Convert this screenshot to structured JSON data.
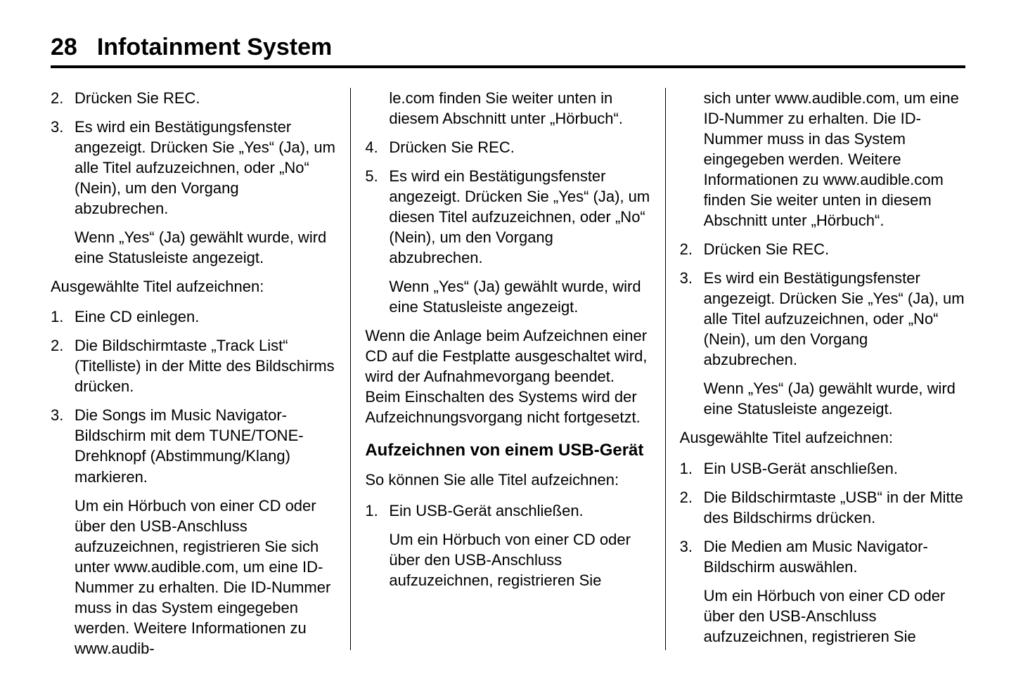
{
  "header": {
    "page_number": "28",
    "title": "Infotainment System"
  },
  "col1": {
    "items_a": [
      {
        "n": "2.",
        "paras": [
          "Drücken Sie REC."
        ]
      },
      {
        "n": "3.",
        "paras": [
          "Es wird ein Bestätigungsfenster angezeigt. Drücken Sie „Yes“ (Ja), um alle Titel aufzuzeichnen, oder „No“ (Nein), um den Vorgang abzubrechen.",
          "Wenn „Yes“ (Ja) gewählt wurde, wird eine Statusleiste angezeigt."
        ]
      }
    ],
    "para_a": "Ausgewählte Titel aufzeichnen:",
    "items_b": [
      {
        "n": "1.",
        "paras": [
          "Eine CD einlegen."
        ]
      },
      {
        "n": "2.",
        "paras": [
          "Die Bildschirmtaste „Track List“ (Titelliste) in der Mitte des Bildschirms drücken."
        ]
      },
      {
        "n": "3.",
        "paras": [
          "Die Songs im Music Navigator-Bildschirm mit dem TUNE/TONE-Drehknopf (Abstimmung/Klang) markieren.",
          "Um ein Hörbuch von einer CD oder über den USB-Anschluss aufzuzeichnen, registrieren Sie sich unter www.audible.com, um eine ID-Nummer zu erhalten. Die ID-Nummer muss in das System eingegeben werden. Weitere Informationen zu www.audib-"
        ]
      }
    ]
  },
  "col2": {
    "cont": "le.com finden Sie weiter unten in diesem Abschnitt unter „Hörbuch“.",
    "items_a": [
      {
        "n": "4.",
        "paras": [
          "Drücken Sie REC."
        ]
      },
      {
        "n": "5.",
        "paras": [
          "Es wird ein Bestätigungsfenster angezeigt. Drücken Sie „Yes“ (Ja), um diesen Titel aufzuzeichnen, oder „No“ (Nein), um den Vorgang abzubrechen.",
          "Wenn „Yes“ (Ja) gewählt wurde, wird eine Statusleiste angezeigt."
        ]
      }
    ],
    "para_a": "Wenn die Anlage beim Aufzeichnen einer CD auf die Festplatte ausgeschaltet wird, wird der Aufnahmevorgang beendet. Beim Einschalten des Systems wird der Aufzeichnungsvorgang nicht fortgesetzt.",
    "h2": "Aufzeichnen von einem USB-Gerät",
    "para_b": "So können Sie alle Titel aufzeichnen:",
    "items_b": [
      {
        "n": "1.",
        "paras": [
          "Ein USB-Gerät anschließen.",
          "Um ein Hörbuch von einer CD oder über den USB-Anschluss aufzuzeichnen, registrieren Sie"
        ]
      }
    ]
  },
  "col3": {
    "cont": "sich unter www.audible.com, um eine ID-Nummer zu erhalten. Die ID-Nummer muss in das System eingegeben werden. Weitere Informationen zu www.audible.com finden Sie weiter unten in diesem Abschnitt unter „Hörbuch“.",
    "items_a": [
      {
        "n": "2.",
        "paras": [
          "Drücken Sie REC."
        ]
      },
      {
        "n": "3.",
        "paras": [
          "Es wird ein Bestätigungsfenster angezeigt. Drücken Sie „Yes“ (Ja), um alle Titel aufzuzeichnen, oder „No“ (Nein), um den Vorgang abzubrechen.",
          "Wenn „Yes“ (Ja) gewählt wurde, wird eine Statusleiste angezeigt."
        ]
      }
    ],
    "para_a": "Ausgewählte Titel aufzeichnen:",
    "items_b": [
      {
        "n": "1.",
        "paras": [
          "Ein USB-Gerät anschließen."
        ]
      },
      {
        "n": "2.",
        "paras": [
          "Die Bildschirmtaste „USB“ in der Mitte des Bildschirms drücken."
        ]
      },
      {
        "n": "3.",
        "paras": [
          "Die Medien am Music Navigator-Bildschirm auswählen.",
          "Um ein Hörbuch von einer CD oder über den USB-Anschluss aufzuzeichnen, registrieren Sie"
        ]
      }
    ]
  }
}
